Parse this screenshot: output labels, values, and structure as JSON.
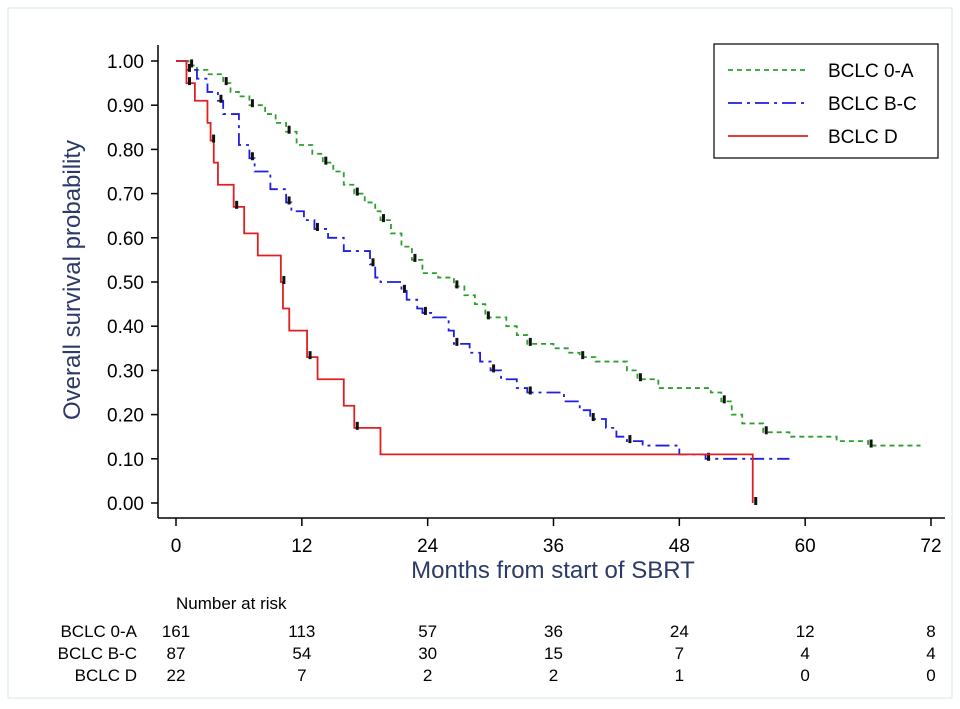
{
  "chart_data": {
    "type": "line",
    "xlabel": "Months from start of SBRT",
    "ylabel": "Overall survival probability",
    "xlim": [
      0,
      72
    ],
    "ylim": [
      0,
      1
    ],
    "x_ticks": [
      "0",
      "12",
      "24",
      "36",
      "48",
      "60",
      "72"
    ],
    "x_tick_values": [
      0,
      12,
      24,
      36,
      48,
      60,
      72
    ],
    "y_ticks": [
      "0.00",
      "0.10",
      "0.20",
      "0.30",
      "0.40",
      "0.50",
      "0.60",
      "0.70",
      "0.80",
      "0.90",
      "1.00"
    ],
    "y_tick_values": [
      0,
      0.1,
      0.2,
      0.3,
      0.4,
      0.5,
      0.6,
      0.7,
      0.8,
      0.9,
      1.0
    ],
    "grid": false,
    "legend_position": "top-right",
    "series": [
      {
        "name": "BCLC 0-A",
        "color": "#2e9e2e",
        "dash": "dotted",
        "steps": [
          [
            0,
            1.0
          ],
          [
            1.2,
            0.99
          ],
          [
            2,
            0.98
          ],
          [
            3,
            0.97
          ],
          [
            4.5,
            0.95
          ],
          [
            5.2,
            0.93
          ],
          [
            6,
            0.92
          ],
          [
            7,
            0.9
          ],
          [
            8.5,
            0.88
          ],
          [
            9.5,
            0.86
          ],
          [
            10.5,
            0.84
          ],
          [
            11.5,
            0.81
          ],
          [
            13,
            0.79
          ],
          [
            14,
            0.77
          ],
          [
            15,
            0.75
          ],
          [
            16,
            0.72
          ],
          [
            17,
            0.7
          ],
          [
            18,
            0.68
          ],
          [
            19,
            0.66
          ],
          [
            19.5,
            0.64
          ],
          [
            20.5,
            0.61
          ],
          [
            21.5,
            0.58
          ],
          [
            22.5,
            0.55
          ],
          [
            23.5,
            0.52
          ],
          [
            25,
            0.51
          ],
          [
            26.5,
            0.49
          ],
          [
            27.5,
            0.47
          ],
          [
            28.5,
            0.45
          ],
          [
            29.5,
            0.42
          ],
          [
            31.5,
            0.4
          ],
          [
            32.5,
            0.38
          ],
          [
            33.5,
            0.36
          ],
          [
            36,
            0.35
          ],
          [
            37.5,
            0.34
          ],
          [
            38.5,
            0.33
          ],
          [
            40,
            0.32
          ],
          [
            43,
            0.3
          ],
          [
            44,
            0.28
          ],
          [
            46,
            0.26
          ],
          [
            51,
            0.25
          ],
          [
            52,
            0.23
          ],
          [
            53,
            0.2
          ],
          [
            54,
            0.18
          ],
          [
            56,
            0.16
          ],
          [
            58.5,
            0.15
          ],
          [
            63,
            0.14
          ],
          [
            66,
            0.13
          ],
          [
            71,
            0.13
          ]
        ]
      },
      {
        "name": "BCLC B-C",
        "color": "#1f1fe0",
        "dash": "dash-dot",
        "steps": [
          [
            0,
            1.0
          ],
          [
            1,
            0.98
          ],
          [
            2,
            0.96
          ],
          [
            3,
            0.93
          ],
          [
            4,
            0.91
          ],
          [
            4.5,
            0.88
          ],
          [
            6,
            0.81
          ],
          [
            7,
            0.78
          ],
          [
            7.5,
            0.75
          ],
          [
            9,
            0.71
          ],
          [
            10.5,
            0.68
          ],
          [
            11,
            0.66
          ],
          [
            12.2,
            0.64
          ],
          [
            13.2,
            0.62
          ],
          [
            14.5,
            0.6
          ],
          [
            16,
            0.57
          ],
          [
            18.5,
            0.54
          ],
          [
            19,
            0.51
          ],
          [
            19.5,
            0.5
          ],
          [
            21.5,
            0.48
          ],
          [
            22,
            0.46
          ],
          [
            23,
            0.44
          ],
          [
            23.5,
            0.43
          ],
          [
            24.5,
            0.42
          ],
          [
            26,
            0.39
          ],
          [
            26.5,
            0.36
          ],
          [
            28,
            0.34
          ],
          [
            29,
            0.32
          ],
          [
            30,
            0.3
          ],
          [
            31,
            0.28
          ],
          [
            32.5,
            0.26
          ],
          [
            33.5,
            0.25
          ],
          [
            37,
            0.23
          ],
          [
            38.5,
            0.21
          ],
          [
            39.5,
            0.19
          ],
          [
            41,
            0.17
          ],
          [
            42,
            0.15
          ],
          [
            43,
            0.14
          ],
          [
            44.5,
            0.13
          ],
          [
            48,
            0.11
          ],
          [
            50.5,
            0.1
          ],
          [
            58.5,
            0.1
          ]
        ]
      },
      {
        "name": "BCLC D",
        "color": "#e02020",
        "dash": "solid",
        "steps": [
          [
            0,
            1.0
          ],
          [
            1,
            0.95
          ],
          [
            1.8,
            0.91
          ],
          [
            3,
            0.86
          ],
          [
            3.3,
            0.82
          ],
          [
            3.6,
            0.77
          ],
          [
            4,
            0.72
          ],
          [
            5.5,
            0.67
          ],
          [
            6.5,
            0.61
          ],
          [
            7.8,
            0.56
          ],
          [
            10,
            0.5
          ],
          [
            10.2,
            0.44
          ],
          [
            10.8,
            0.39
          ],
          [
            12.5,
            0.33
          ],
          [
            13.5,
            0.28
          ],
          [
            16,
            0.22
          ],
          [
            17,
            0.17
          ],
          [
            19.5,
            0.11
          ],
          [
            55,
            0.11
          ],
          [
            55,
            0.0
          ]
        ]
      }
    ],
    "risk_table": {
      "title": "Number at risk",
      "times": [
        0,
        12,
        24,
        36,
        48,
        60,
        72
      ],
      "rows": [
        {
          "label": "BCLC 0-A",
          "counts": [
            "161",
            "113",
            "57",
            "36",
            "24",
            "12",
            "8"
          ]
        },
        {
          "label": "BCLC B-C",
          "counts": [
            "87",
            "54",
            "30",
            "15",
            "7",
            "4",
            "4"
          ]
        },
        {
          "label": "BCLC D",
          "counts": [
            "22",
            "7",
            "2",
            "2",
            "1",
            "0",
            "0"
          ]
        }
      ]
    }
  }
}
